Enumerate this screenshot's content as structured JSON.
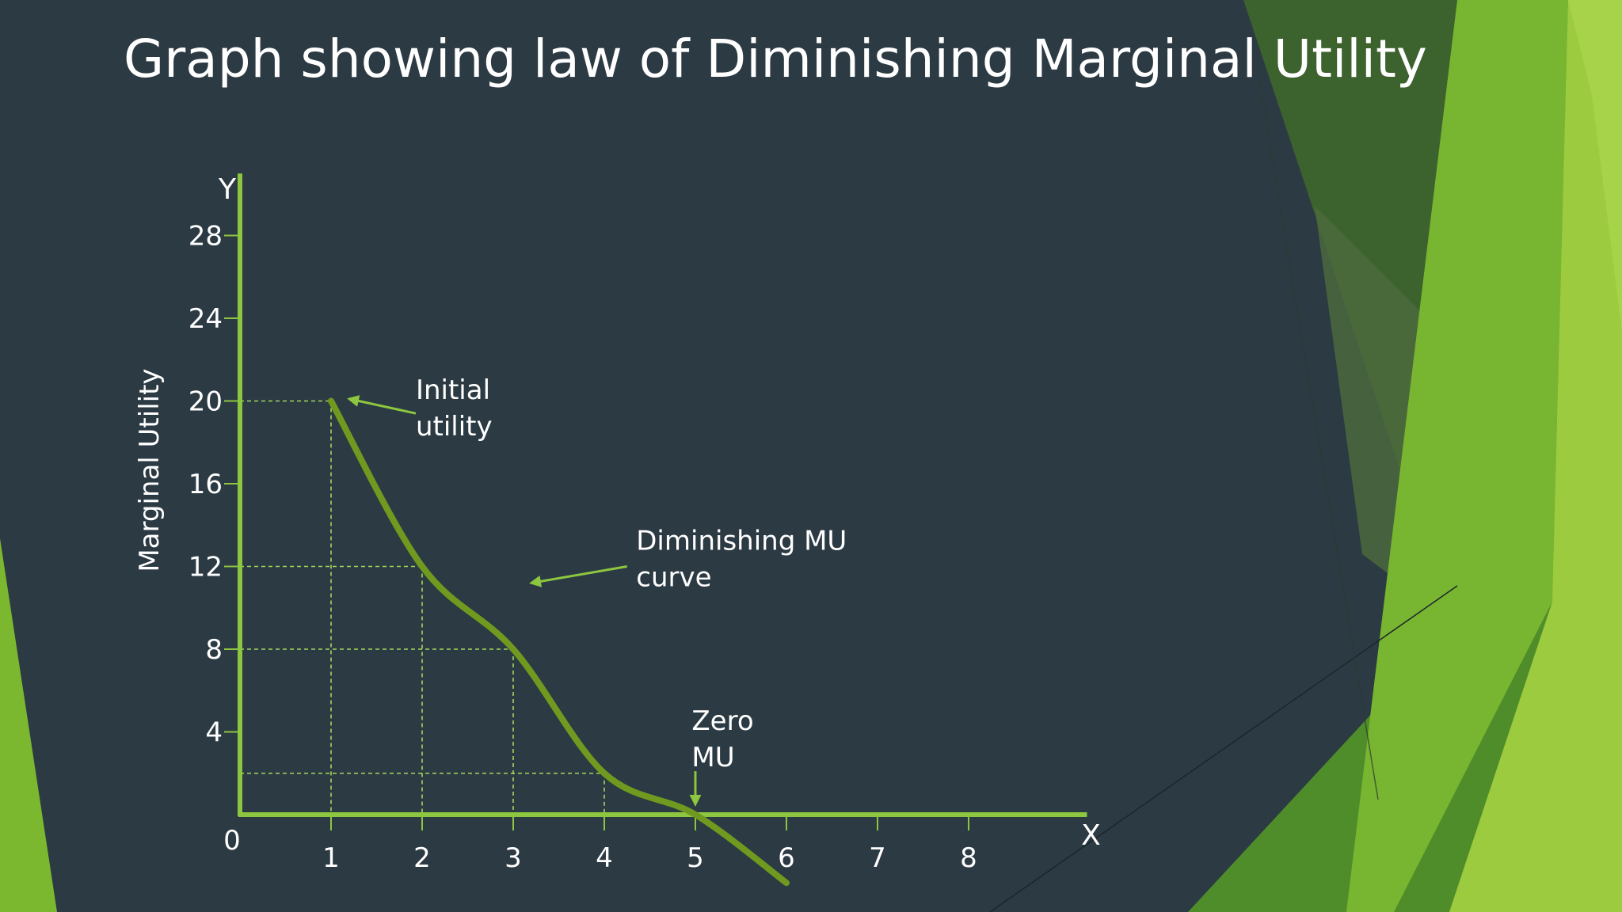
{
  "title": "Graph showing law of Diminishing Marginal Utility",
  "colors": {
    "background": "#2c3a43",
    "axis": "#8dc63f",
    "curve": "#6f9a1f",
    "grid": "#a4d65e",
    "text": "#ffffff"
  },
  "chart_data": {
    "type": "line",
    "ylabel": "Marginal Utility",
    "x_axis_letter": "X",
    "y_axis_letter": "Y",
    "origin_label": "0",
    "x_ticks": [
      1,
      2,
      3,
      4,
      5,
      6,
      7,
      8
    ],
    "y_ticks": [
      4,
      8,
      12,
      16,
      20,
      24,
      28
    ],
    "xlim": [
      0,
      9.3
    ],
    "ylim": [
      0,
      31
    ],
    "grid": false,
    "series": [
      {
        "x": [
          1,
          2,
          3,
          4,
          5,
          6
        ],
        "y": [
          20,
          12,
          8,
          2,
          0,
          -3.3
        ]
      }
    ],
    "guides": [
      {
        "x": 1,
        "y": 20
      },
      {
        "x": 2,
        "y": 12
      },
      {
        "x": 3,
        "y": 8
      },
      {
        "x": 4,
        "y": 2
      }
    ],
    "annotations": [
      {
        "lines": [
          "Initial",
          "utility"
        ],
        "text_x": 1.93,
        "text_y": 20.1,
        "arrow_from": [
          1.93,
          19.4
        ],
        "arrow_to": [
          1.2,
          20.1
        ]
      },
      {
        "lines": [
          "Diminishing MU",
          "curve"
        ],
        "text_x": 4.35,
        "text_y": 12.8,
        "arrow_from": [
          4.25,
          12.0
        ],
        "arrow_to": [
          3.2,
          11.2
        ]
      },
      {
        "lines": [
          "Zero",
          "MU"
        ],
        "text_x": 4.96,
        "text_y": 4.1,
        "arrow_from": [
          5.0,
          2.1
        ],
        "arrow_to": [
          5.0,
          0.5
        ]
      }
    ]
  }
}
